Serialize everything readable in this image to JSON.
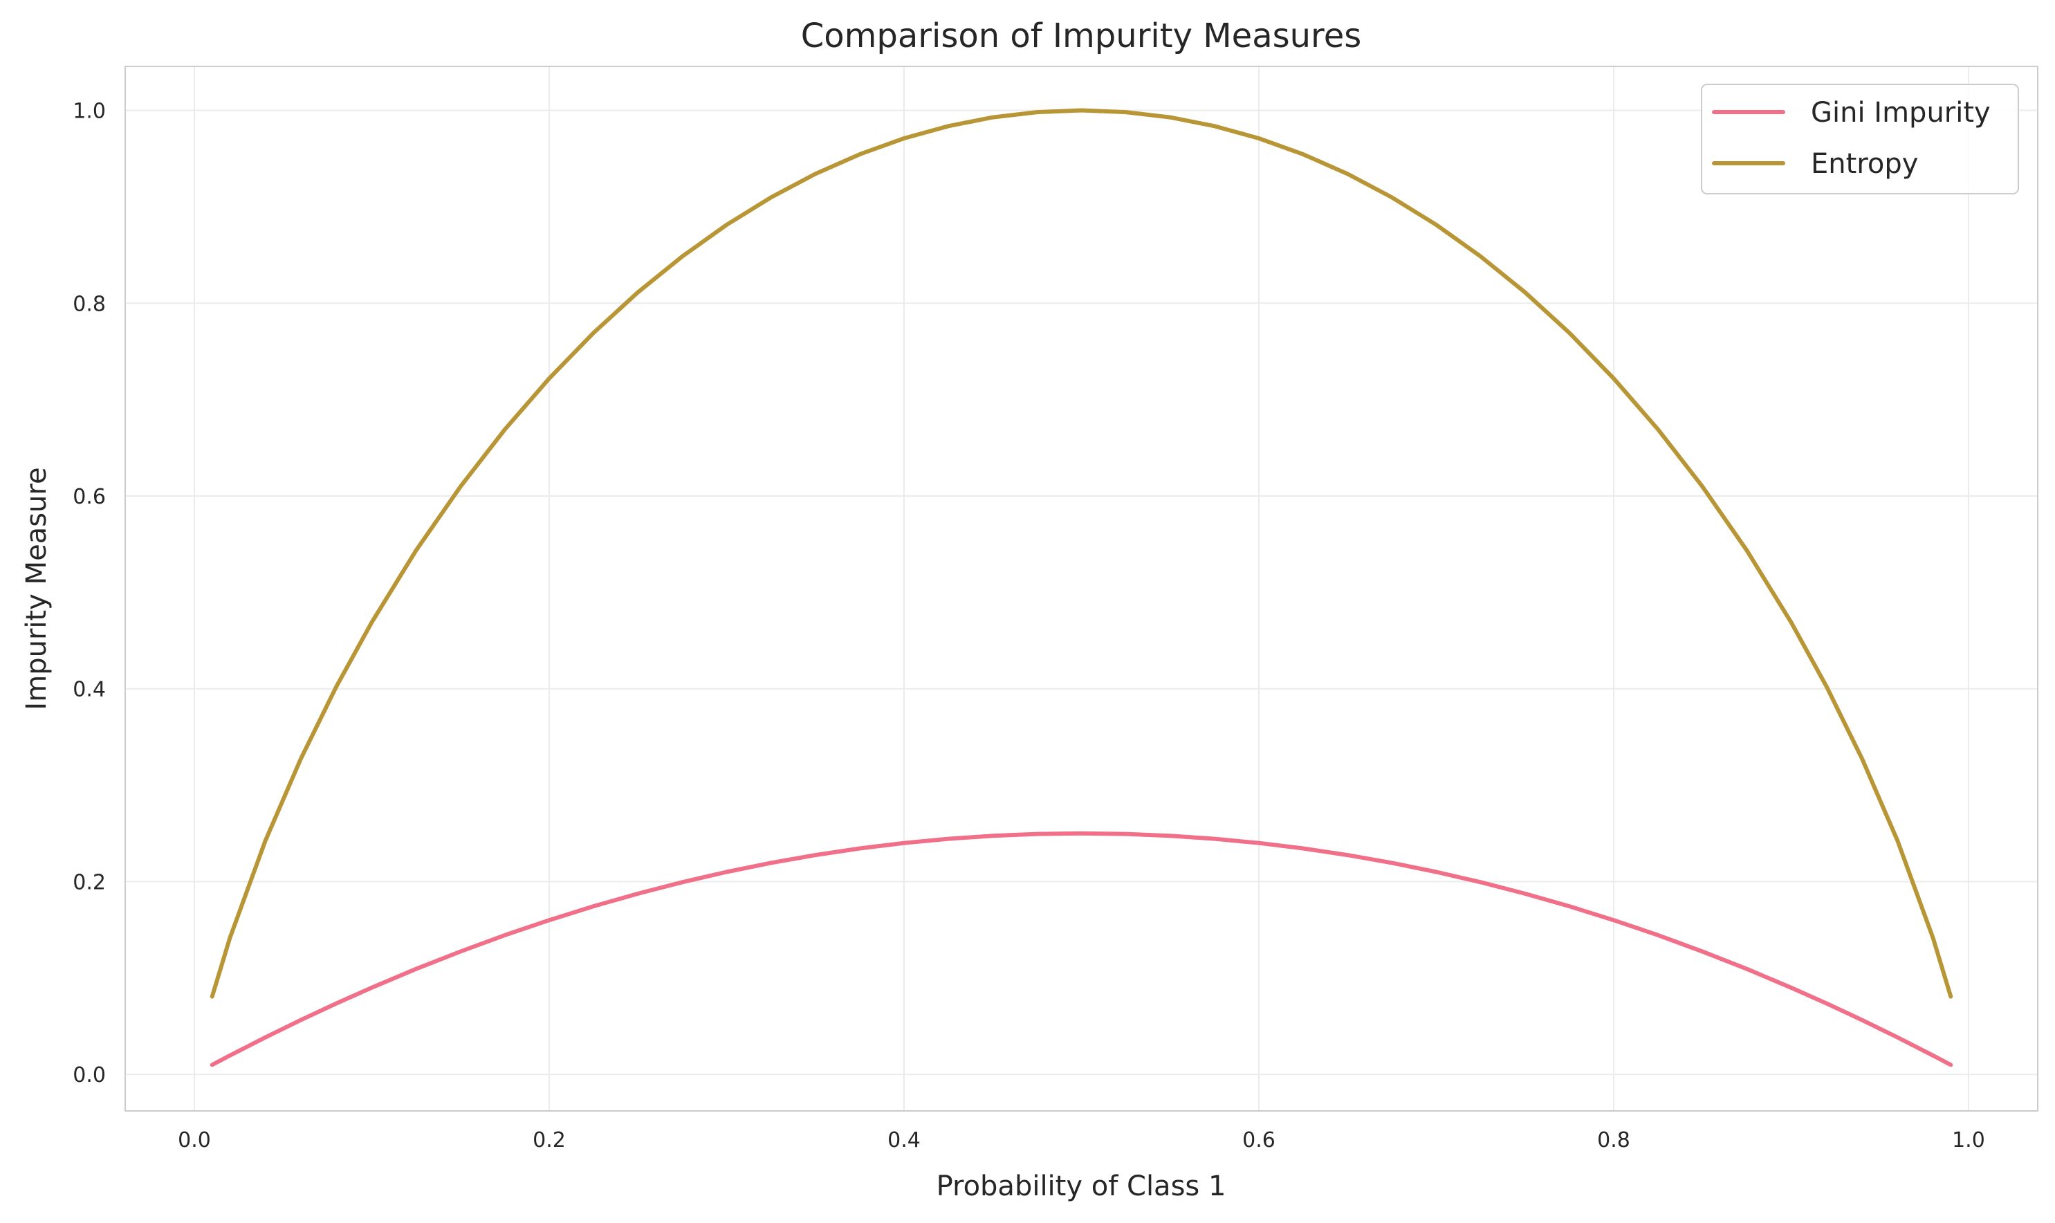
{
  "chart_data": {
    "type": "line",
    "title": "Comparison of Impurity Measures",
    "xlabel": "Probability of Class 1",
    "ylabel": "Impurity Measure",
    "xlim": [
      -0.039,
      1.039
    ],
    "ylim": [
      -0.0379,
      1.0456
    ],
    "xticks": [
      0.0,
      0.2,
      0.4,
      0.6,
      0.8,
      1.0
    ],
    "xtick_labels": [
      "0.0",
      "0.2",
      "0.4",
      "0.6",
      "0.8",
      "1.0"
    ],
    "yticks": [
      0.0,
      0.2,
      0.4,
      0.6,
      0.8,
      1.0
    ],
    "ytick_labels": [
      "0.0",
      "0.2",
      "0.4",
      "0.6",
      "0.8",
      "1.0"
    ],
    "grid": true,
    "legend_position": "top-right",
    "x": [
      0.01,
      0.02,
      0.04,
      0.06,
      0.08,
      0.1,
      0.125,
      0.15,
      0.175,
      0.2,
      0.225,
      0.25,
      0.275,
      0.3,
      0.325,
      0.35,
      0.375,
      0.4,
      0.425,
      0.45,
      0.475,
      0.5,
      0.525,
      0.55,
      0.575,
      0.6,
      0.625,
      0.65,
      0.675,
      0.7,
      0.725,
      0.75,
      0.775,
      0.8,
      0.825,
      0.85,
      0.875,
      0.9,
      0.92,
      0.94,
      0.96,
      0.98,
      0.99
    ],
    "series": [
      {
        "name": "Gini Impurity",
        "color": "#f07089",
        "values": [
          0.0099,
          0.0196,
          0.0384,
          0.0564,
          0.0736,
          0.09,
          0.1094,
          0.1275,
          0.1444,
          0.16,
          0.1744,
          0.1875,
          0.1994,
          0.21,
          0.2194,
          0.2275,
          0.2344,
          0.24,
          0.2444,
          0.2475,
          0.2494,
          0.25,
          0.2494,
          0.2475,
          0.2444,
          0.24,
          0.2344,
          0.2275,
          0.2194,
          0.21,
          0.1994,
          0.1875,
          0.1744,
          0.16,
          0.1444,
          0.1275,
          0.1094,
          0.09,
          0.0736,
          0.0564,
          0.0384,
          0.0196,
          0.0099
        ]
      },
      {
        "name": "Entropy",
        "color": "#b89535",
        "values": [
          0.0808,
          0.1414,
          0.2423,
          0.3274,
          0.4022,
          0.469,
          0.5436,
          0.6098,
          0.669,
          0.7219,
          0.7692,
          0.8113,
          0.8485,
          0.8813,
          0.9097,
          0.9341,
          0.9544,
          0.971,
          0.9837,
          0.9928,
          0.9982,
          1.0,
          0.9982,
          0.9928,
          0.9837,
          0.971,
          0.9544,
          0.9341,
          0.9097,
          0.8813,
          0.8485,
          0.8113,
          0.7692,
          0.7219,
          0.669,
          0.6098,
          0.5436,
          0.469,
          0.4022,
          0.3274,
          0.2423,
          0.1414,
          0.0808
        ]
      }
    ]
  }
}
